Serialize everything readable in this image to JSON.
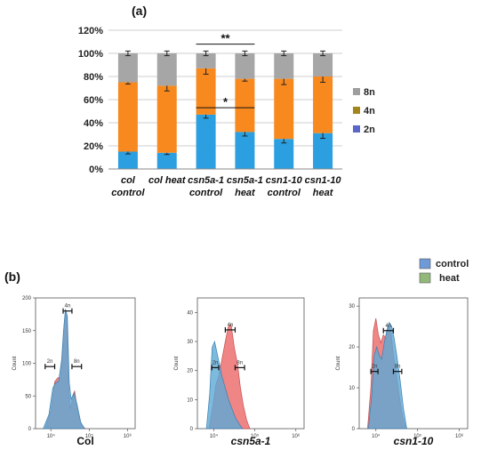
{
  "panels": {
    "a": "(a)",
    "b": "(b)"
  },
  "chart_data": [
    {
      "type": "bar",
      "stacked": true,
      "categories": [
        [
          "col",
          "control"
        ],
        [
          "col heat"
        ],
        [
          "csn5a-1",
          "control"
        ],
        [
          "csn5a-1",
          "heat"
        ],
        [
          "csn1-10",
          "control"
        ],
        [
          "csn1-10",
          "heat"
        ]
      ],
      "yticks": [
        "0%",
        "20%",
        "40%",
        "60%",
        "80%",
        "100%",
        "120%"
      ],
      "ylim": [
        0,
        120
      ],
      "series": [
        {
          "name": "2n",
          "color": "#2b9fe0",
          "values": [
            15,
            14,
            47,
            32,
            26,
            31
          ],
          "errors": [
            2,
            1.5,
            3,
            3.5,
            3.5,
            4.5
          ]
        },
        {
          "name": "4n",
          "color": "#f7891f",
          "values": [
            60,
            58,
            40,
            46,
            52,
            49
          ],
          "errors": [
            1.5,
            4.5,
            5,
            2,
            5,
            5
          ]
        },
        {
          "name": "8n",
          "color": "#a6a6a6",
          "values": [
            25,
            28,
            13,
            22,
            22,
            20
          ],
          "errors": [
            2,
            2,
            2,
            2,
            2,
            2
          ]
        }
      ],
      "legend_order": [
        "8n",
        "4n",
        "2n"
      ],
      "legend_colors": {
        "8n": "#9e9e9e",
        "4n": "#a4851c",
        "2n": "#5b67c8"
      },
      "significance": [
        {
          "label": "**",
          "from": 2,
          "to": 3,
          "y": 108
        },
        {
          "label": "*",
          "from": 2,
          "to": 3,
          "y": 53
        }
      ],
      "grid": true,
      "legend_position": "right"
    },
    {
      "type": "area",
      "title": "Col",
      "italic": false,
      "ylabel": "Count",
      "yticks": [
        0,
        50,
        100,
        150,
        200
      ],
      "ylim": [
        0,
        200
      ],
      "xticks": [
        "10⁴",
        "10⁵",
        "10⁶"
      ],
      "log_range": [
        3.6,
        6.2
      ],
      "gates": [
        {
          "label": "2n",
          "x1": 3.85,
          "x2": 4.1,
          "y": 95
        },
        {
          "label": "4n",
          "x1": 4.32,
          "x2": 4.55,
          "y": 180
        },
        {
          "label": "8n",
          "x1": 4.55,
          "x2": 4.8,
          "y": 95
        }
      ],
      "series": [
        {
          "name": "heat",
          "color": "#ec7070",
          "x": [
            3.85,
            4.0,
            4.1,
            4.18,
            4.25,
            4.3,
            4.35,
            4.38,
            4.42,
            4.45,
            4.5,
            4.55,
            4.62,
            4.7,
            4.8,
            4.9
          ],
          "y": [
            0,
            28,
            72,
            78,
            78,
            112,
            162,
            178,
            168,
            80,
            30,
            42,
            58,
            25,
            5,
            0
          ]
        },
        {
          "name": "control",
          "color": "#5ba9d6",
          "x": [
            3.8,
            3.95,
            4.05,
            4.12,
            4.2,
            4.28,
            4.33,
            4.38,
            4.43,
            4.48,
            4.53,
            4.6,
            4.68,
            4.78,
            4.88
          ],
          "y": [
            0,
            22,
            62,
            70,
            72,
            105,
            150,
            183,
            172,
            70,
            45,
            55,
            38,
            10,
            0
          ]
        }
      ]
    },
    {
      "type": "area",
      "title": "csn5a-1",
      "italic": true,
      "ylabel": "Count",
      "yticks": [
        0,
        10,
        20,
        30,
        40
      ],
      "ylim": [
        0,
        45
      ],
      "xticks": [
        "10⁴",
        "10⁵",
        "10⁶"
      ],
      "log_range": [
        3.6,
        6.2
      ],
      "gates": [
        {
          "label": "2n",
          "x1": 3.95,
          "x2": 4.12,
          "y": 21
        },
        {
          "label": "4n",
          "x1": 4.28,
          "x2": 4.52,
          "y": 34
        },
        {
          "label": "8n",
          "x1": 4.52,
          "x2": 4.75,
          "y": 21
        }
      ],
      "series": [
        {
          "name": "heat",
          "color": "#ec7070",
          "x": [
            3.88,
            3.98,
            4.05,
            4.12,
            4.2,
            4.28,
            4.35,
            4.42,
            4.5,
            4.58,
            4.65,
            4.72,
            4.8,
            4.88
          ],
          "y": [
            0,
            8,
            15,
            18,
            24,
            30,
            35,
            36,
            28,
            22,
            14,
            8,
            3,
            0
          ]
        },
        {
          "name": "control",
          "color": "#5ba9d6",
          "x": [
            3.82,
            3.9,
            3.96,
            4.02,
            4.08,
            4.14,
            4.2,
            4.28,
            4.36,
            4.44,
            4.52,
            4.6,
            4.7
          ],
          "y": [
            0,
            12,
            28,
            30,
            26,
            22,
            18,
            14,
            10,
            7,
            4,
            2,
            0
          ]
        }
      ]
    },
    {
      "type": "area",
      "title": "csn1-10",
      "italic": true,
      "ylabel": "Count",
      "yticks": [
        0,
        10,
        20,
        30
      ],
      "ylim": [
        0,
        32
      ],
      "xticks": [
        "10⁴",
        "10⁵",
        "10⁶"
      ],
      "log_range": [
        3.6,
        6.2
      ],
      "gates": [
        {
          "label": "2n",
          "x1": 3.88,
          "x2": 4.05,
          "y": 14
        },
        {
          "label": "4n",
          "x1": 4.18,
          "x2": 4.42,
          "y": 24
        },
        {
          "label": "8n",
          "x1": 4.42,
          "x2": 4.62,
          "y": 14
        }
      ],
      "series": [
        {
          "name": "heat",
          "color": "#ec7070",
          "x": [
            3.8,
            3.88,
            3.94,
            4.0,
            4.06,
            4.12,
            4.18,
            4.24,
            4.3,
            4.36,
            4.42,
            4.48,
            4.56,
            4.64,
            4.72
          ],
          "y": [
            0,
            10,
            24,
            27,
            23,
            21,
            23,
            22,
            25,
            24,
            18,
            14,
            8,
            3,
            0
          ]
        },
        {
          "name": "control",
          "color": "#5ba9d6",
          "x": [
            3.82,
            3.9,
            3.96,
            4.02,
            4.08,
            4.14,
            4.2,
            4.26,
            4.32,
            4.38,
            4.44,
            4.5,
            4.58,
            4.66,
            4.74
          ],
          "y": [
            0,
            8,
            18,
            20,
            18,
            17,
            21,
            24,
            26,
            25,
            22,
            18,
            12,
            5,
            0
          ]
        }
      ]
    }
  ],
  "legend_b": [
    {
      "label": "control",
      "color": "#6f9ad8"
    },
    {
      "label": "heat",
      "color": "#93b97a"
    }
  ]
}
